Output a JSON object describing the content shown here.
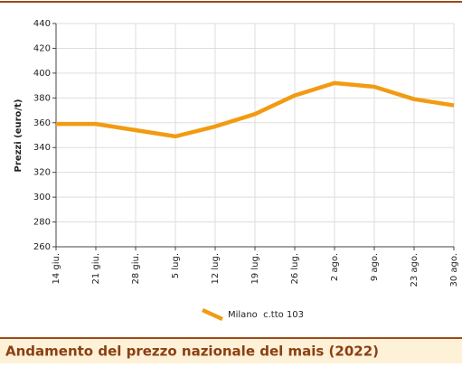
{
  "chart_data": {
    "type": "line",
    "title": "Andamento del prezzo nazionale del mais (2022)",
    "y_label": "Prezzi (euro/t)",
    "categories": [
      "14 giu.",
      "21 giu.",
      "28 giu.",
      "5 lug.",
      "12 lug.",
      "19 lug.",
      "26 lug.",
      "2 ago.",
      "9 ago.",
      "23 ago.",
      "30 ago."
    ],
    "series": [
      {
        "name": "Milano  c.tto 103",
        "color": "#f29b12",
        "values": [
          359,
          359,
          354,
          349,
          357,
          367,
          382,
          392,
          389,
          379,
          374
        ]
      }
    ],
    "ylim": [
      260,
      440
    ],
    "yticks": [
      260,
      280,
      300,
      320,
      340,
      360,
      380,
      400,
      420,
      440
    ],
    "grid": true
  }
}
